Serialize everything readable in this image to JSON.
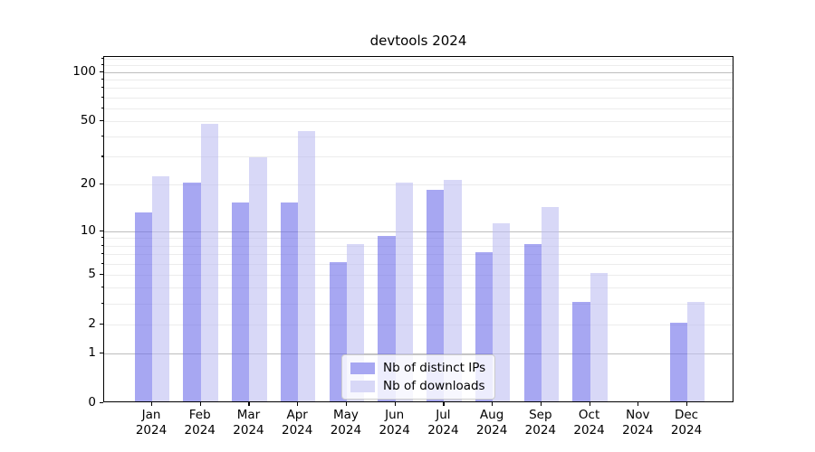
{
  "chart_data": {
    "type": "bar",
    "title": "devtools 2024",
    "categories": [
      "Jan 2024",
      "Feb 2024",
      "Mar 2024",
      "Apr 2024",
      "May 2024",
      "Jun 2024",
      "Jul 2024",
      "Aug 2024",
      "Sep 2024",
      "Oct 2024",
      "Nov 2024",
      "Dec 2024"
    ],
    "x_tick_line1": [
      "Jan",
      "Feb",
      "Mar",
      "Apr",
      "May",
      "Jun",
      "Jul",
      "Aug",
      "Sep",
      "Oct",
      "Nov",
      "Dec"
    ],
    "x_tick_line2": "2024",
    "series": [
      {
        "name": "Nb of distinct IPs",
        "color": "#a7a7f2",
        "fill": "rgba(108,108,233,0.6)",
        "values": [
          13,
          20,
          15,
          15,
          6,
          9,
          18,
          7,
          8,
          3,
          0,
          2
        ]
      },
      {
        "name": "Nb of downloads",
        "color": "#d8d8f7",
        "fill": "rgba(190,190,242,0.6)",
        "values": [
          22,
          47,
          29,
          42,
          8,
          20,
          21,
          11,
          14,
          5,
          0,
          3
        ]
      }
    ],
    "yscale": "log1p",
    "ylim": [
      0,
      123
    ],
    "y_ticks": [
      0,
      1,
      2,
      5,
      10,
      20,
      50,
      100
    ],
    "y_major_gridlines": [
      1,
      10,
      100
    ],
    "y_minor_gridlines": [
      2,
      3,
      4,
      5,
      6,
      7,
      8,
      9,
      20,
      30,
      40,
      50,
      60,
      70,
      80,
      90,
      110,
      120
    ],
    "grid": true,
    "legend_position": "lower center",
    "colors": {
      "grid_minor": "#ececec",
      "grid_major": "#bdbdbd",
      "spine": "#000000",
      "text": "#000000",
      "background": "#ffffff"
    }
  }
}
